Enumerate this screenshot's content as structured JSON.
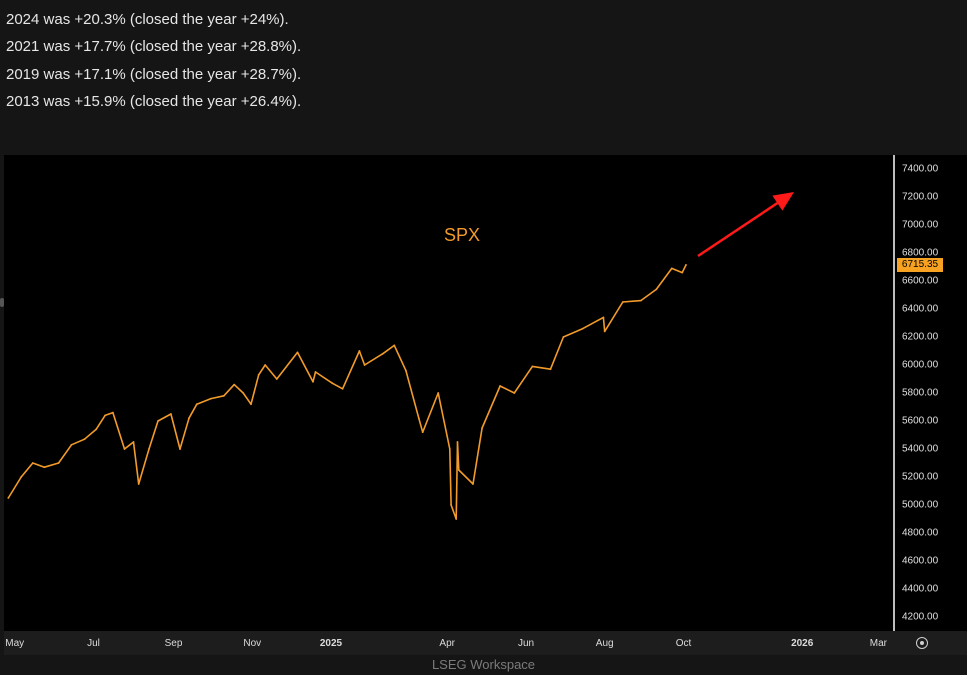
{
  "notes": [
    "2024 was +20.3% (closed the year +24%).",
    "2021 was +17.7% (closed the year +28.8%).",
    "2019 was +17.1% (closed the year +28.7%).",
    "2013 was +15.9% (closed the year +26.4%)."
  ],
  "watermark": "LSEG Workspace",
  "colors": {
    "background": "#151515",
    "chart_background": "#000000",
    "series": "#f29b2a",
    "arrow": "#ff1a1a",
    "price_tag": "#f7a321"
  },
  "icons": {
    "settings": "gear-icon",
    "annotation": "red-arrow-icon"
  },
  "chart_data": {
    "type": "line",
    "title": "SPX",
    "xlabel": "",
    "ylabel": "",
    "ylim": [
      4100,
      7500
    ],
    "y_ticks": [
      4200,
      4400,
      4600,
      4800,
      5000,
      5200,
      5400,
      5600,
      5800,
      6000,
      6200,
      6400,
      6600,
      6800,
      7000,
      7200,
      7400
    ],
    "y_tick_labels": [
      "4200.00",
      "4400.00",
      "4600.00",
      "4800.00",
      "5000.00",
      "5200.00",
      "5400.00",
      "5600.00",
      "5800.00",
      "6000.00",
      "6200.00",
      "6400.00",
      "6600.00",
      "6800.00",
      "7000.00",
      "7200.00",
      "7400.00"
    ],
    "xlim": [
      "2024-04-25",
      "2026-03-10"
    ],
    "x_ticks": [
      {
        "label": "May",
        "date": "2024-05-01"
      },
      {
        "label": "Jul",
        "date": "2024-07-01"
      },
      {
        "label": "Sep",
        "date": "2024-09-01"
      },
      {
        "label": "Nov",
        "date": "2024-11-01"
      },
      {
        "label": "2025",
        "date": "2025-01-01",
        "year": true
      },
      {
        "label": "Apr",
        "date": "2025-04-01"
      },
      {
        "label": "Jun",
        "date": "2025-06-01"
      },
      {
        "label": "Aug",
        "date": "2025-08-01"
      },
      {
        "label": "Oct",
        "date": "2025-10-01"
      },
      {
        "label": "2026",
        "date": "2026-01-01",
        "year": true
      },
      {
        "label": "Mar",
        "date": "2026-03-01"
      }
    ],
    "last_value": 6715.35,
    "last_value_label": "6715.35",
    "series": [
      {
        "x": [
          "2024-04-26",
          "2024-05-06",
          "2024-05-15",
          "2024-05-24",
          "2024-06-04",
          "2024-06-14",
          "2024-06-24",
          "2024-07-03",
          "2024-07-10",
          "2024-07-16",
          "2024-07-25",
          "2024-08-01",
          "2024-08-05",
          "2024-08-13",
          "2024-08-20",
          "2024-08-30",
          "2024-09-06",
          "2024-09-13",
          "2024-09-19",
          "2024-09-30",
          "2024-10-10",
          "2024-10-18",
          "2024-10-25",
          "2024-10-31",
          "2024-11-06",
          "2024-11-11",
          "2024-11-20",
          "2024-12-06",
          "2024-12-18",
          "2024-12-20",
          "2025-01-02",
          "2025-01-10",
          "2025-01-23",
          "2025-01-27",
          "2025-02-10",
          "2025-02-19",
          "2025-02-28",
          "2025-03-10",
          "2025-03-13",
          "2025-03-25",
          "2025-04-03",
          "2025-04-04",
          "2025-04-08",
          "2025-04-09",
          "2025-04-10",
          "2025-04-21",
          "2025-04-28",
          "2025-05-12",
          "2025-05-23",
          "2025-06-06",
          "2025-06-20",
          "2025-06-30",
          "2025-07-15",
          "2025-07-31",
          "2025-08-01",
          "2025-08-15",
          "2025-08-29",
          "2025-09-10",
          "2025-09-22",
          "2025-09-30",
          "2025-10-03"
        ],
        "y": [
          5050,
          5200,
          5300,
          5270,
          5300,
          5430,
          5470,
          5540,
          5640,
          5660,
          5400,
          5450,
          5150,
          5400,
          5600,
          5650,
          5400,
          5620,
          5720,
          5760,
          5780,
          5860,
          5800,
          5720,
          5930,
          6000,
          5900,
          6090,
          5880,
          5950,
          5870,
          5830,
          6100,
          6000,
          6080,
          6140,
          5960,
          5620,
          5520,
          5800,
          5400,
          5000,
          4900,
          5450,
          5250,
          5150,
          5550,
          5850,
          5800,
          5990,
          5970,
          6200,
          6260,
          6340,
          6240,
          6450,
          6460,
          6540,
          6690,
          6660,
          6715
        ]
      }
    ]
  }
}
